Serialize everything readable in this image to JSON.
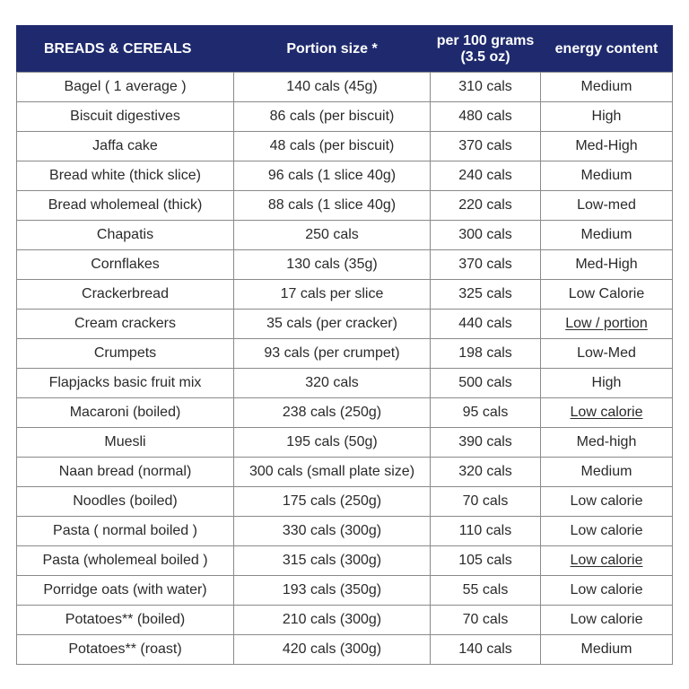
{
  "table": {
    "headers": [
      "BREADS & CEREALS",
      "Portion size *",
      "per 100 grams\n(3.5 oz)",
      "energy content"
    ],
    "rows": [
      [
        "Bagel ( 1 average )",
        "140 cals (45g)",
        "310 cals",
        "Medium"
      ],
      [
        "Biscuit digestives",
        "86 cals (per biscuit)",
        "480 cals",
        "High"
      ],
      [
        "Jaffa cake",
        "48 cals (per biscuit)",
        "370 cals",
        "Med-High"
      ],
      [
        "Bread white (thick slice)",
        "96 cals (1 slice 40g)",
        "240 cals",
        "Medium"
      ],
      [
        "Bread wholemeal (thick)",
        "88 cals (1 slice 40g)",
        "220 cals",
        "Low-med"
      ],
      [
        "Chapatis",
        "250 cals",
        "300 cals",
        "Medium"
      ],
      [
        "Cornflakes",
        "130 cals (35g)",
        "370 cals",
        "Med-High"
      ],
      [
        "Crackerbread",
        "17 cals per slice",
        "325 cals",
        "Low Calorie"
      ],
      [
        "Cream crackers",
        "35 cals (per cracker)",
        "440 cals",
        "Low / portion"
      ],
      [
        "Crumpets",
        "93 cals (per crumpet)",
        "198 cals",
        "Low-Med"
      ],
      [
        "Flapjacks basic fruit mix",
        "320 cals",
        "500 cals",
        "High"
      ],
      [
        "Macaroni (boiled)",
        "238 cals (250g)",
        "95 cals",
        "Low calorie"
      ],
      [
        "Muesli",
        "195 cals (50g)",
        "390 cals",
        "Med-high"
      ],
      [
        "Naan bread (normal)",
        "300 cals (small plate size)",
        "320 cals",
        "Medium"
      ],
      [
        "Noodles (boiled)",
        "175 cals (250g)",
        "70 cals",
        "Low calorie"
      ],
      [
        "Pasta ( normal boiled )",
        "330 cals (300g)",
        "110 cals",
        "Low calorie"
      ],
      [
        "Pasta (wholemeal boiled )",
        "315 cals (300g)",
        "105 cals",
        "Low calorie"
      ],
      [
        "Porridge oats (with water)",
        "193 cals (350g)",
        "55 cals",
        "Low calorie"
      ],
      [
        "Potatoes** (boiled)",
        "210 cals (300g)",
        "70 cals",
        "Low calorie"
      ],
      [
        "Potatoes** (roast)",
        "420 cals (300g)",
        "140 cals",
        "Medium"
      ]
    ],
    "underlined_energy_rows": [
      8,
      11,
      16
    ]
  },
  "colors": {
    "header_bg": "#1f2a6e",
    "header_text": "#ffffff",
    "body_text": "#2a2a2a",
    "grid": "#8a8a8a"
  }
}
